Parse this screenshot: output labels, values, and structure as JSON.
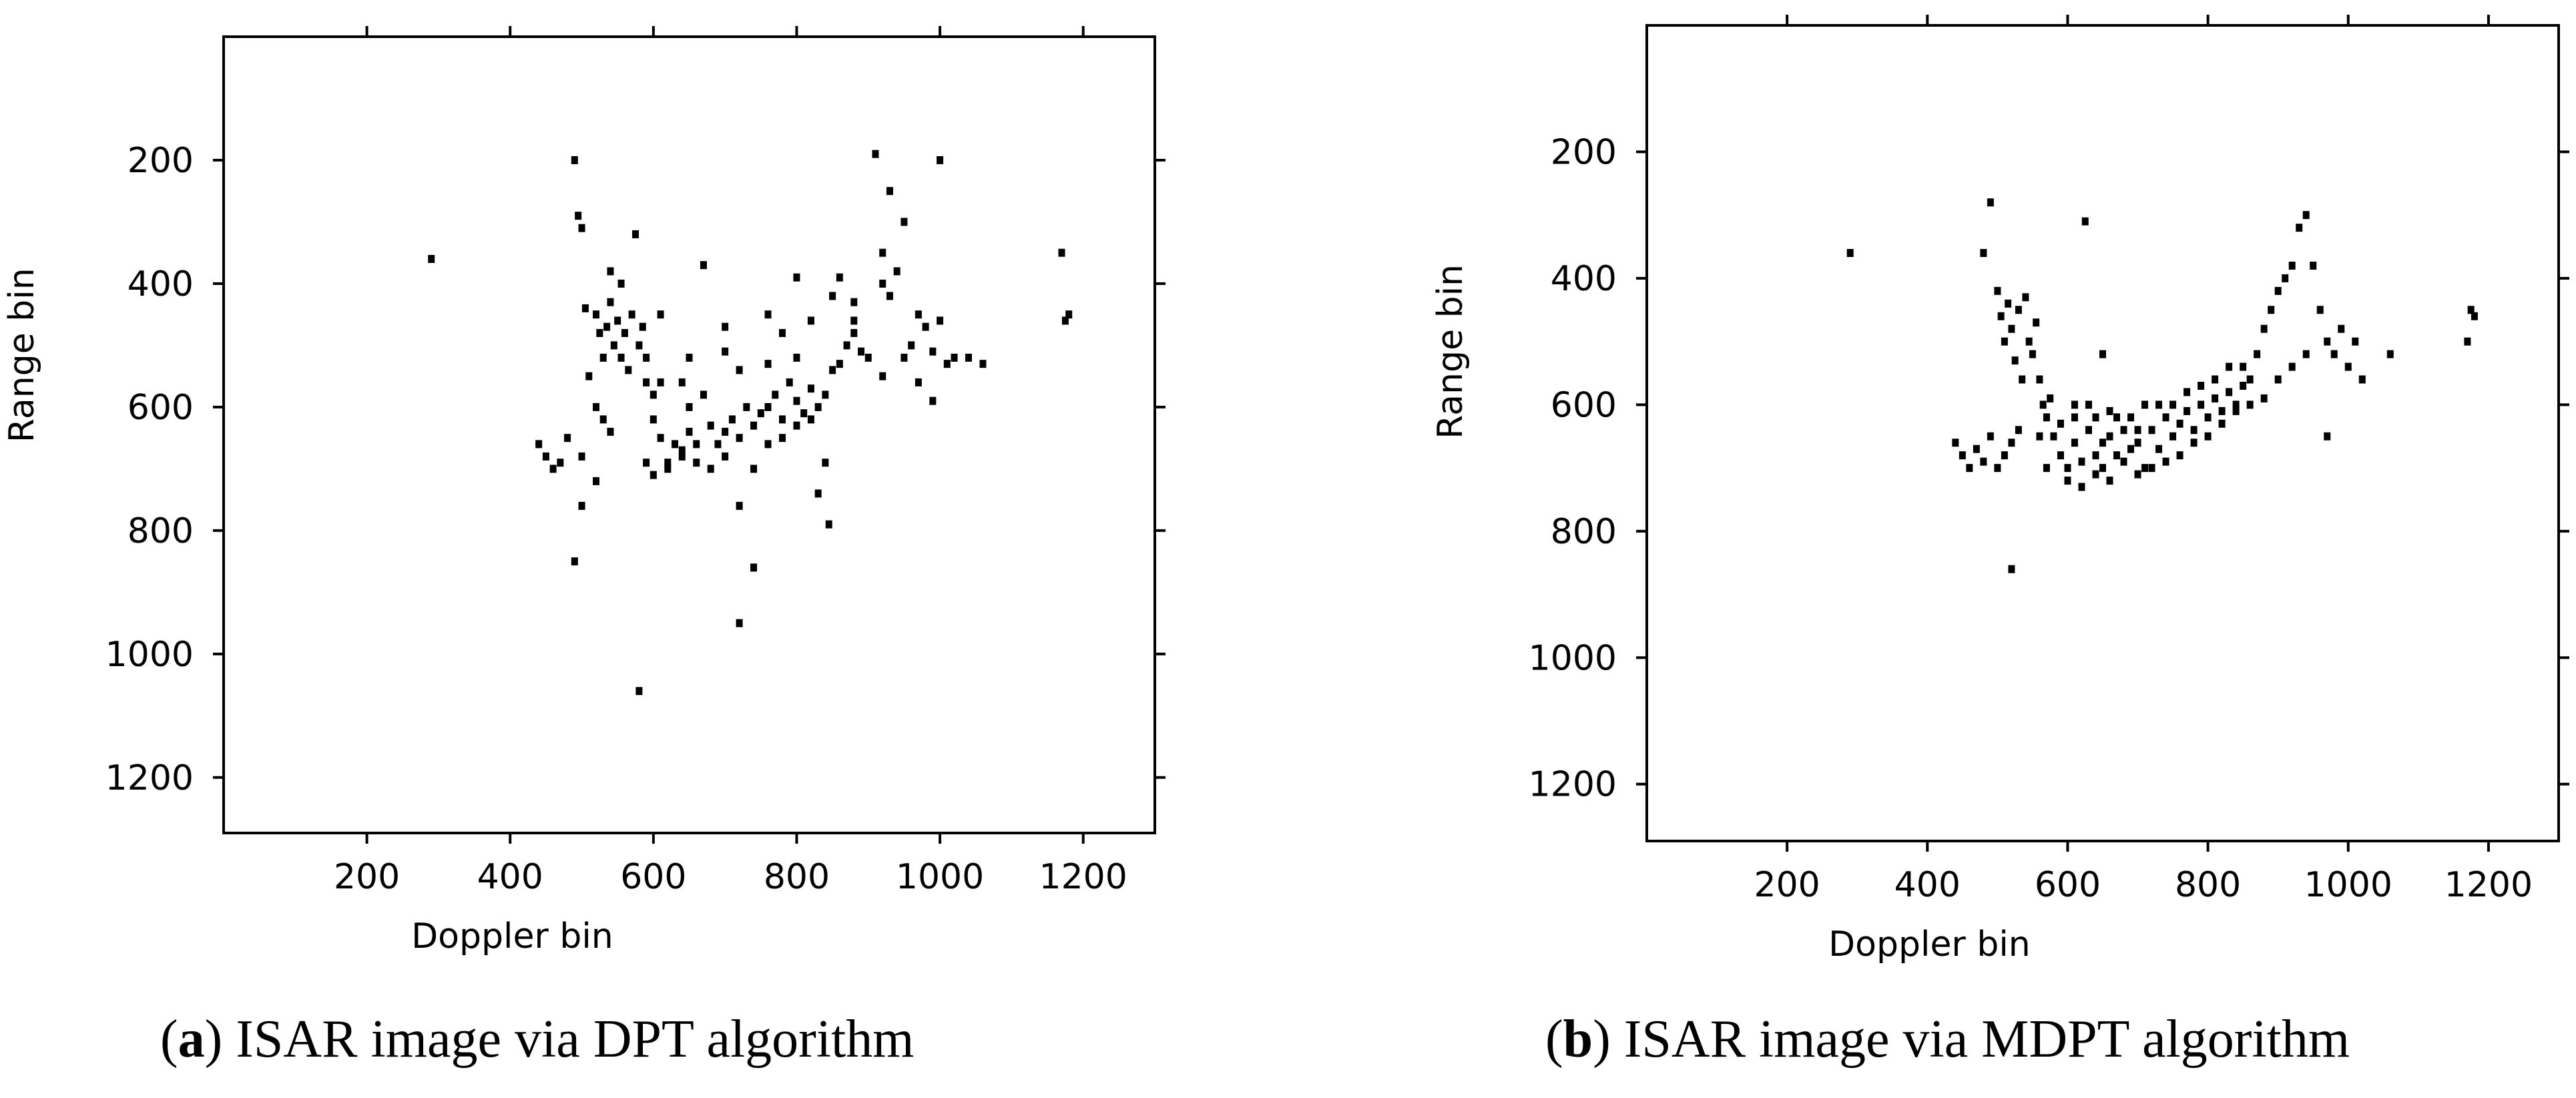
{
  "chart_data": [
    {
      "type": "scatter",
      "panel": "(a)",
      "caption_letter": "a",
      "caption_text": " ISAR image via DPT algorithm",
      "xlabel": "Doppler bin",
      "ylabel": "Range bin",
      "xlim": [
        0,
        1300
      ],
      "ylim": [
        1290,
        0
      ],
      "y_axis_inverted": true,
      "xticks": [
        200,
        400,
        600,
        800,
        1000,
        1200
      ],
      "yticks": [
        200,
        400,
        600,
        800,
        1000,
        1200
      ],
      "grid": false,
      "marker_color": "#000000",
      "points": [
        [
          290,
          360
        ],
        [
          490,
          200
        ],
        [
          495,
          290
        ],
        [
          500,
          310
        ],
        [
          505,
          440
        ],
        [
          510,
          550
        ],
        [
          520,
          450
        ],
        [
          525,
          480
        ],
        [
          530,
          520
        ],
        [
          535,
          470
        ],
        [
          540,
          430
        ],
        [
          545,
          500
        ],
        [
          550,
          460
        ],
        [
          555,
          520
        ],
        [
          560,
          480
        ],
        [
          565,
          540
        ],
        [
          570,
          450
        ],
        [
          575,
          320
        ],
        [
          580,
          500
        ],
        [
          585,
          470
        ],
        [
          590,
          560
        ],
        [
          520,
          600
        ],
        [
          530,
          620
        ],
        [
          540,
          640
        ],
        [
          500,
          680
        ],
        [
          480,
          650
        ],
        [
          470,
          690
        ],
        [
          460,
          700
        ],
        [
          450,
          680
        ],
        [
          440,
          660
        ],
        [
          500,
          760
        ],
        [
          520,
          720
        ],
        [
          490,
          850
        ],
        [
          580,
          1060
        ],
        [
          600,
          580
        ],
        [
          610,
          650
        ],
        [
          620,
          700
        ],
        [
          630,
          660
        ],
        [
          640,
          680
        ],
        [
          650,
          640
        ],
        [
          660,
          660
        ],
        [
          670,
          370
        ],
        [
          680,
          630
        ],
        [
          690,
          660
        ],
        [
          700,
          640
        ],
        [
          710,
          620
        ],
        [
          720,
          650
        ],
        [
          730,
          600
        ],
        [
          740,
          630
        ],
        [
          750,
          610
        ],
        [
          760,
          600
        ],
        [
          770,
          580
        ],
        [
          780,
          620
        ],
        [
          790,
          560
        ],
        [
          800,
          590
        ],
        [
          810,
          610
        ],
        [
          820,
          570
        ],
        [
          830,
          600
        ],
        [
          840,
          580
        ],
        [
          850,
          540
        ],
        [
          860,
          530
        ],
        [
          870,
          500
        ],
        [
          880,
          480
        ],
        [
          890,
          510
        ],
        [
          900,
          520
        ],
        [
          910,
          190
        ],
        [
          920,
          400
        ],
        [
          930,
          250
        ],
        [
          940,
          380
        ],
        [
          950,
          300
        ],
        [
          960,
          500
        ],
        [
          970,
          450
        ],
        [
          980,
          470
        ],
        [
          990,
          510
        ],
        [
          1000,
          460
        ],
        [
          1000,
          200
        ],
        [
          1010,
          530
        ],
        [
          1020,
          520
        ],
        [
          1040,
          520
        ],
        [
          1060,
          530
        ],
        [
          590,
          690
        ],
        [
          600,
          710
        ],
        [
          620,
          690
        ],
        [
          640,
          670
        ],
        [
          660,
          690
        ],
        [
          680,
          700
        ],
        [
          700,
          680
        ],
        [
          720,
          760
        ],
        [
          740,
          700
        ],
        [
          760,
          660
        ],
        [
          780,
          650
        ],
        [
          800,
          630
        ],
        [
          820,
          620
        ],
        [
          840,
          690
        ],
        [
          845,
          790
        ],
        [
          830,
          740
        ],
        [
          720,
          950
        ],
        [
          740,
          860
        ],
        [
          610,
          450
        ],
        [
          640,
          560
        ],
        [
          650,
          520
        ],
        [
          700,
          510
        ],
        [
          720,
          540
        ],
        [
          760,
          450
        ],
        [
          780,
          480
        ],
        [
          800,
          390
        ],
        [
          820,
          460
        ],
        [
          850,
          420
        ],
        [
          860,
          390
        ],
        [
          880,
          430
        ],
        [
          920,
          350
        ],
        [
          930,
          420
        ],
        [
          950,
          520
        ],
        [
          970,
          560
        ],
        [
          990,
          590
        ],
        [
          1170,
          350
        ],
        [
          1180,
          450
        ],
        [
          1175,
          460
        ],
        [
          650,
          600
        ],
        [
          670,
          580
        ],
        [
          590,
          520
        ],
        [
          610,
          560
        ],
        [
          700,
          470
        ],
        [
          760,
          530
        ],
        [
          800,
          520
        ],
        [
          880,
          460
        ],
        [
          920,
          550
        ],
        [
          540,
          380
        ],
        [
          555,
          400
        ],
        [
          600,
          620
        ]
      ]
    },
    {
      "type": "scatter",
      "panel": "(b)",
      "caption_letter": "b",
      "caption_text": " ISAR image via MDPT algorithm",
      "xlabel": "Doppler bin",
      "ylabel": "Range bin",
      "xlim": [
        0,
        1300
      ],
      "ylim": [
        1290,
        0
      ],
      "y_axis_inverted": true,
      "xticks": [
        200,
        400,
        600,
        800,
        1000,
        1200
      ],
      "yticks": [
        200,
        400,
        600,
        800,
        1000,
        1200
      ],
      "grid": false,
      "marker_color": "#000000",
      "points": [
        [
          290,
          360
        ],
        [
          480,
          360
        ],
        [
          490,
          280
        ],
        [
          500,
          420
        ],
        [
          505,
          460
        ],
        [
          510,
          500
        ],
        [
          515,
          440
        ],
        [
          520,
          480
        ],
        [
          525,
          530
        ],
        [
          530,
          450
        ],
        [
          535,
          560
        ],
        [
          540,
          430
        ],
        [
          545,
          500
        ],
        [
          550,
          520
        ],
        [
          555,
          470
        ],
        [
          560,
          560
        ],
        [
          565,
          600
        ],
        [
          570,
          620
        ],
        [
          575,
          590
        ],
        [
          530,
          640
        ],
        [
          520,
          660
        ],
        [
          510,
          680
        ],
        [
          500,
          700
        ],
        [
          490,
          650
        ],
        [
          480,
          690
        ],
        [
          470,
          670
        ],
        [
          460,
          700
        ],
        [
          450,
          680
        ],
        [
          440,
          660
        ],
        [
          520,
          860
        ],
        [
          580,
          650
        ],
        [
          590,
          680
        ],
        [
          600,
          700
        ],
        [
          610,
          660
        ],
        [
          620,
          690
        ],
        [
          630,
          640
        ],
        [
          640,
          680
        ],
        [
          650,
          700
        ],
        [
          660,
          650
        ],
        [
          670,
          680
        ],
        [
          680,
          640
        ],
        [
          690,
          670
        ],
        [
          700,
          660
        ],
        [
          710,
          700
        ],
        [
          720,
          640
        ],
        [
          730,
          670
        ],
        [
          740,
          620
        ],
        [
          750,
          650
        ],
        [
          760,
          630
        ],
        [
          770,
          610
        ],
        [
          780,
          640
        ],
        [
          790,
          600
        ],
        [
          800,
          620
        ],
        [
          810,
          590
        ],
        [
          820,
          610
        ],
        [
          830,
          580
        ],
        [
          840,
          600
        ],
        [
          850,
          570
        ],
        [
          860,
          560
        ],
        [
          870,
          520
        ],
        [
          880,
          480
        ],
        [
          890,
          450
        ],
        [
          900,
          420
        ],
        [
          910,
          400
        ],
        [
          920,
          380
        ],
        [
          930,
          320
        ],
        [
          940,
          300
        ],
        [
          950,
          380
        ],
        [
          960,
          450
        ],
        [
          970,
          500
        ],
        [
          980,
          520
        ],
        [
          990,
          480
        ],
        [
          1000,
          540
        ],
        [
          1010,
          500
        ],
        [
          1020,
          560
        ],
        [
          1060,
          520
        ],
        [
          970,
          650
        ],
        [
          1170,
          500
        ],
        [
          1180,
          460
        ],
        [
          1175,
          450
        ],
        [
          600,
          720
        ],
        [
          620,
          730
        ],
        [
          640,
          710
        ],
        [
          660,
          720
        ],
        [
          680,
          690
        ],
        [
          700,
          710
        ],
        [
          720,
          700
        ],
        [
          740,
          690
        ],
        [
          760,
          680
        ],
        [
          780,
          660
        ],
        [
          800,
          650
        ],
        [
          820,
          630
        ],
        [
          840,
          610
        ],
        [
          860,
          600
        ],
        [
          880,
          590
        ],
        [
          900,
          560
        ],
        [
          920,
          540
        ],
        [
          940,
          520
        ],
        [
          625,
          310
        ],
        [
          650,
          520
        ],
        [
          560,
          650
        ],
        [
          570,
          700
        ],
        [
          590,
          630
        ],
        [
          610,
          620
        ],
        [
          630,
          600
        ],
        [
          650,
          660
        ],
        [
          670,
          620
        ],
        [
          690,
          620
        ],
        [
          710,
          600
        ],
        [
          730,
          600
        ],
        [
          750,
          600
        ],
        [
          770,
          580
        ],
        [
          790,
          570
        ],
        [
          810,
          560
        ],
        [
          830,
          540
        ],
        [
          850,
          540
        ],
        [
          610,
          600
        ],
        [
          640,
          620
        ],
        [
          660,
          610
        ],
        [
          700,
          640
        ]
      ]
    }
  ]
}
